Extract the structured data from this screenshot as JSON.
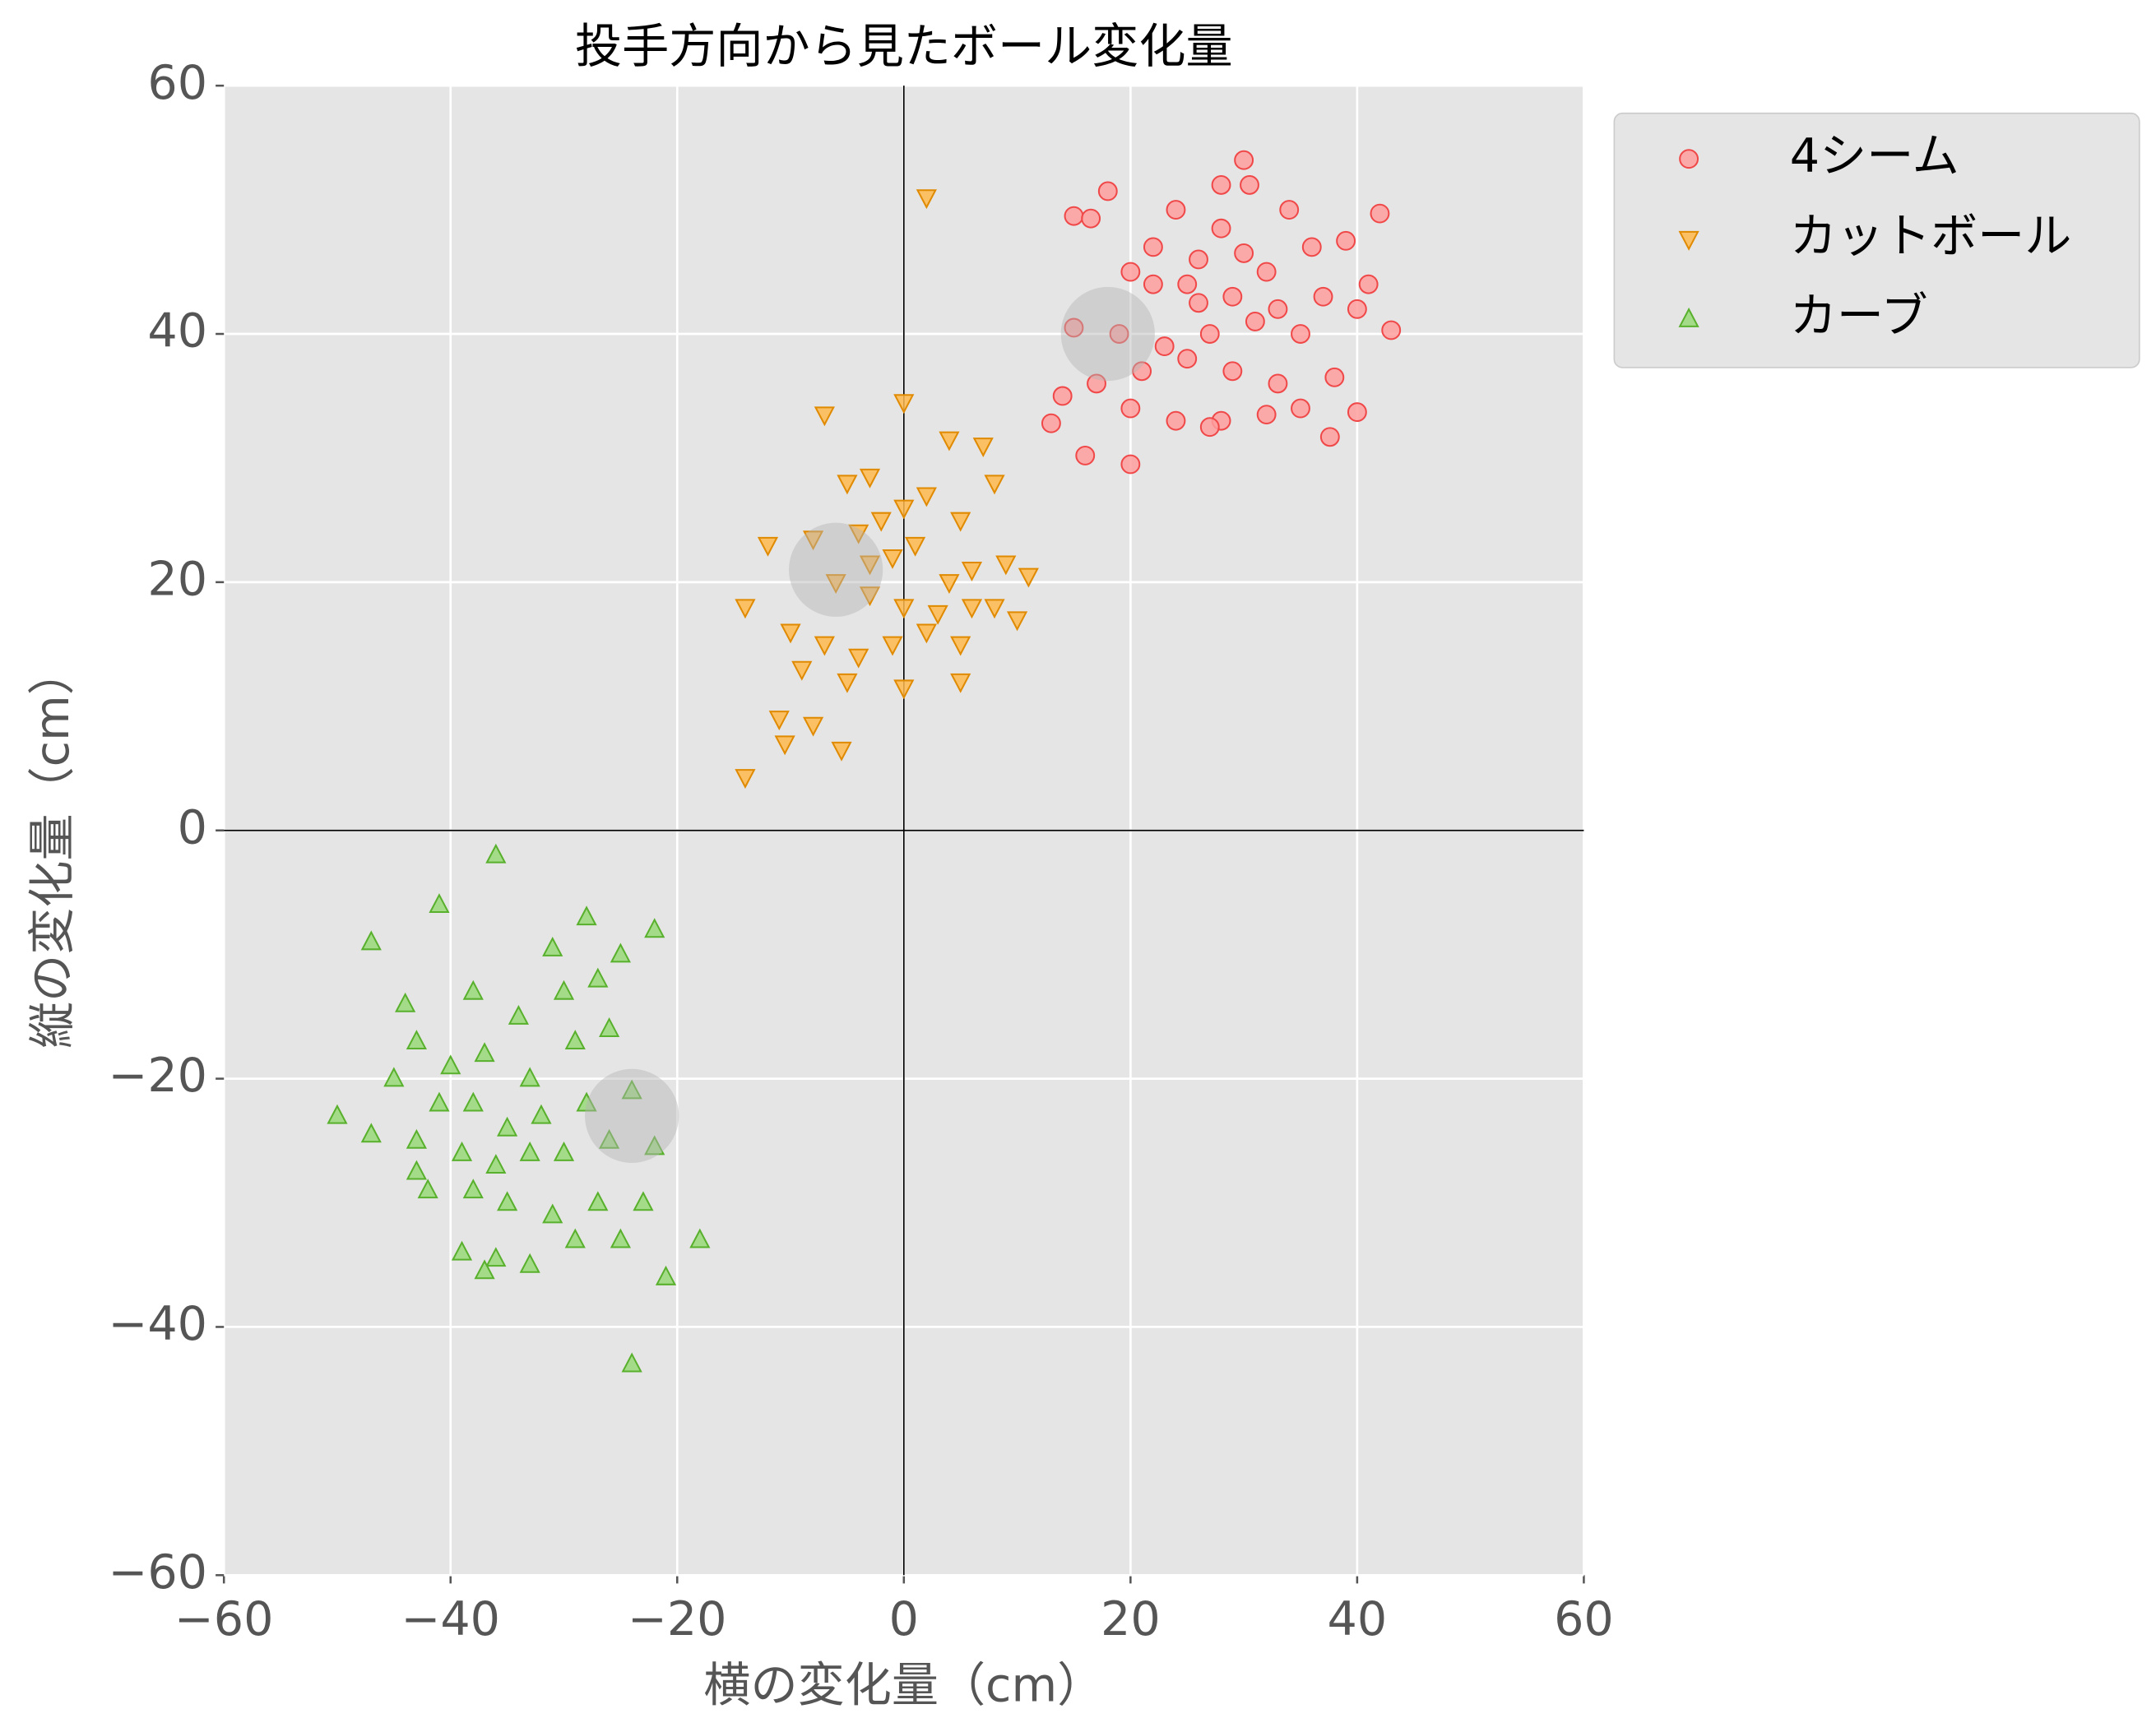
{
  "chart_data": {
    "type": "scatter",
    "title": "投手方向から見たボール変化量",
    "x_label": "横の変化量（cm）",
    "y_label": "縦の変化量（cm）",
    "xlim": [
      -60,
      60
    ],
    "ylim": [
      -60,
      60
    ],
    "xticks": [
      {
        "value": -60,
        "label": "−60"
      },
      {
        "value": -40,
        "label": "−40"
      },
      {
        "value": -20,
        "label": "−20"
      },
      0,
      20,
      40,
      60
    ],
    "yticks": [
      {
        "value": -60,
        "label": "−60"
      },
      {
        "value": -40,
        "label": "−40"
      },
      {
        "value": -20,
        "label": "−20"
      },
      0,
      20,
      40,
      60
    ],
    "grid": true,
    "legend": "outside upper right",
    "series": [
      {
        "name": "4シーム",
        "marker": "circle",
        "color": "#ff9e9e",
        "edgecolor": "#f04848",
        "x": [
          30,
          18,
          28,
          30.5,
          15,
          16.5,
          42,
          34,
          24,
          28,
          22,
          26,
          32,
          36,
          39,
          41,
          20,
          25,
          29,
          33,
          37,
          40,
          15,
          19,
          23,
          27,
          31,
          35,
          43,
          21,
          25,
          29,
          33,
          38,
          17,
          14,
          20,
          24,
          28,
          32,
          35,
          40,
          13,
          16,
          20,
          37.6,
          27,
          30,
          26,
          22
        ],
        "y": [
          54,
          51.5,
          52,
          52,
          49.5,
          49.3,
          49.7,
          50,
          50,
          48.5,
          47,
          46,
          45,
          47,
          47.5,
          44,
          45,
          44,
          43,
          42,
          43,
          42,
          40.5,
          40,
          39,
          40,
          41,
          40,
          40.3,
          37,
          38,
          37,
          36,
          36.5,
          36,
          35,
          34,
          33,
          33,
          33.5,
          34,
          33.7,
          32.8,
          30.2,
          29.5,
          31.7,
          32.5,
          46.5,
          42.5,
          44
        ]
      },
      {
        "name": "カットボール",
        "marker": "triangle-down",
        "color": "#ffb84d",
        "edgecolor": "#e08a00",
        "x": [
          2,
          0,
          -7,
          -3,
          7,
          4,
          -5,
          -12,
          -8,
          -4,
          0,
          2,
          5,
          8,
          -1,
          1,
          4,
          6,
          9,
          11,
          -6,
          -3,
          0,
          3,
          6,
          8,
          10,
          -14,
          -10,
          -7,
          -4,
          -1,
          2,
          5,
          -9,
          -5,
          0,
          5,
          -11,
          -8,
          -10.5,
          -5.5,
          -14,
          -3,
          -2
        ],
        "y": [
          51,
          34.5,
          33.5,
          28.5,
          31,
          31.5,
          28,
          23,
          23.5,
          24,
          26,
          27,
          25,
          28,
          22,
          23,
          20,
          21,
          21.5,
          20.5,
          20,
          19,
          18,
          17.5,
          18,
          18,
          17,
          18,
          16,
          15,
          14,
          15,
          16,
          15,
          13,
          12,
          11.5,
          12,
          9,
          8.5,
          7,
          6.5,
          4.3,
          21.5,
          25
        ]
      },
      {
        "name": "カーブ",
        "marker": "triangle-up",
        "color": "#98d978",
        "edgecolor": "#58b02c",
        "x": [
          -36,
          -41,
          -28,
          -47,
          -31,
          -22,
          -25,
          -44,
          -38,
          -34,
          -27,
          -30,
          -43,
          -40,
          -37,
          -33,
          -29,
          -26,
          -45,
          -41,
          -38,
          -35,
          -32,
          -28,
          -24,
          -50,
          -47,
          -43,
          -39,
          -36,
          -33,
          -30,
          -26,
          -22,
          -42,
          -38,
          -35,
          -31,
          -27,
          -23,
          -39,
          -36,
          -33,
          -29,
          -25,
          -21,
          -18,
          -24,
          -37,
          -43
        ],
        "y": [
          -2,
          -6,
          -7,
          -9,
          -9.5,
          -8,
          -10,
          -14,
          -13,
          -15,
          -12,
          -13,
          -17,
          -19,
          -18,
          -20,
          -17,
          -16,
          -20,
          -22,
          -22,
          -24,
          -23,
          -22,
          -21,
          -23,
          -24.5,
          -25,
          -26,
          -27,
          -26,
          -26,
          -25,
          -25.5,
          -29,
          -29,
          -30,
          -31,
          -30,
          -30,
          -34,
          -34.5,
          -35,
          -33,
          -33,
          -36,
          -33,
          -43,
          -35.5,
          -27.5
        ]
      }
    ],
    "means": {
      "color": "#b4b4b4",
      "x": [
        18,
        -6,
        -24
      ],
      "y": [
        40,
        21,
        -23
      ]
    }
  }
}
